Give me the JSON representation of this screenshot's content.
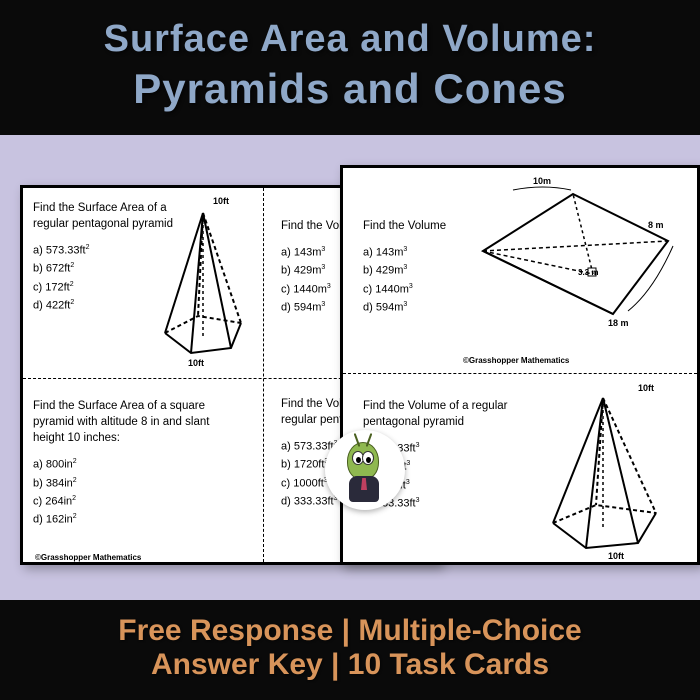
{
  "header": {
    "line1": "Surface Area and Volume:",
    "line2": "Pyramids and Cones",
    "text_color": "#8fa8c8",
    "bg_color": "#0a0a0a"
  },
  "footer": {
    "line1": "Free Response | Multiple-Choice",
    "line2": "Answer Key | 10 Task Cards",
    "text_color": "#d8945a",
    "bg_color": "#0a0a0a"
  },
  "page_bg": "#c8c3e0",
  "copyright": "©Grasshopper Mathematics",
  "back_sheet": {
    "q1": {
      "prompt": "Find the Surface Area of a regular pentagonal pyramid",
      "options": [
        "a) 573.33ft²",
        "b) 672ft²",
        "c) 172ft²",
        "d) 422ft²"
      ],
      "dim_top": "10ft",
      "dim_bottom": "10ft"
    },
    "q2": {
      "prompt": "Find the Volume",
      "options": [
        "a)  143m³",
        "b)  429m³",
        "c)  1440m³",
        "d)  594m³"
      ]
    },
    "q3": {
      "prompt": "Find the Surface Area of a square pyramid with altitude 8 in and slant height 10 inches:",
      "options": [
        "a) 800in²",
        "b) 384in²",
        "c) 264in²",
        "d) 162in²"
      ]
    },
    "q4": {
      "prompt": "Find the Volume of a regular pentagonal pyramid",
      "options": [
        "a) 573.33ft³",
        "b) 1720ft³",
        "c) 1000ft³",
        "d) 333.33ft³"
      ]
    }
  },
  "front_sheet": {
    "q1": {
      "prompt": "Find the Volume",
      "options": [
        "a)  143m³",
        "b)  429m³",
        "c)  1440m³",
        "d)  594m³"
      ],
      "dim_top": "10m",
      "dim_right": "8 m",
      "dim_mid": "3.3 m",
      "dim_bottom": "18 m"
    },
    "q2": {
      "prompt": "Find the Volume of a regular pentagonal pyramid",
      "options": [
        "a) 573.33ft³",
        "b) 1720ft³",
        "c) 1000ft³",
        "d) 333.33ft³"
      ],
      "dim_top": "10ft",
      "dim_bottom": "10ft"
    }
  }
}
